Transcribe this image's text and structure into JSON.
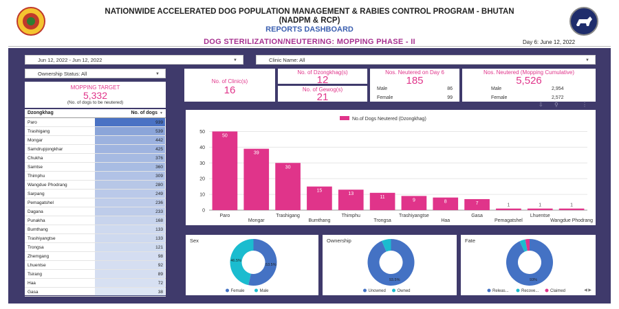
{
  "header": {
    "title_line1": "NATIONWIDE ACCELERATED DOG POPULATION MANAGEMENT & RABIES CONTROL PROGRAM - BHUTAN",
    "title_line2": "(NADPM & RCP)",
    "subtitle": "REPORTS DASHBOARD",
    "phase_title": "DOG STERILIZATION/NEUTERING: MOPPING PHASE - II",
    "day_text": "Day 6: June 12, 2022"
  },
  "filters": {
    "date_range": "Jun 12, 2022 - Jun 12, 2022",
    "clinic": "Clinic Name: All",
    "ownership": "Ownership Status: All"
  },
  "target": {
    "label": "MOPPING TARGET",
    "value": "5,332",
    "note": "(No. of dogs to be neutered)"
  },
  "kpis": {
    "clinics_label": "No. of Clinic(s)",
    "clinics_value": "16",
    "dzongkhags_label": "No. of Dzongkhag(s)",
    "dzongkhags_value": "12",
    "gewogs_label": "No. of Gewog(s)",
    "gewogs_value": "21",
    "day6_label": "Nos. Neutered on Day 6",
    "day6_value": "185",
    "day6_male_label": "Male",
    "day6_male": "86",
    "day6_female_label": "Female",
    "day6_female": "99",
    "cum_label": "Nos. Neutered (Mopping Cumulative)",
    "cum_value": "5,526",
    "cum_male_label": "Male",
    "cum_male": "2,954",
    "cum_female_label": "Female",
    "cum_female": "2,572"
  },
  "table": {
    "col1": "Dzongkhag",
    "col2": "No. of dogs",
    "sort_icon": "sort-desc-icon",
    "bar_color": "#4a72c4",
    "rows": [
      {
        "name": "Paro",
        "value": 939
      },
      {
        "name": "Trashigang",
        "value": 539
      },
      {
        "name": "Mongar",
        "value": 442
      },
      {
        "name": "Samdrupjongkhar",
        "value": 425
      },
      {
        "name": "Chukha",
        "value": 376
      },
      {
        "name": "Samtse",
        "value": 360
      },
      {
        "name": "Thimphu",
        "value": 309
      },
      {
        "name": "Wangdue Phodrang",
        "value": 280
      },
      {
        "name": "Sarpang",
        "value": 249
      },
      {
        "name": "Pemagatshel",
        "value": 236
      },
      {
        "name": "Dagana",
        "value": 233
      },
      {
        "name": "Punakha",
        "value": 168
      },
      {
        "name": "Bumthang",
        "value": 133
      },
      {
        "name": "Trashiyangtse",
        "value": 133
      },
      {
        "name": "Trongsa",
        "value": 121
      },
      {
        "name": "Zhemgang",
        "value": 98
      },
      {
        "name": "Lhuentse",
        "value": 92
      },
      {
        "name": "Tsirang",
        "value": 89
      },
      {
        "name": "Haa",
        "value": 72
      },
      {
        "name": "Gasa",
        "value": 38
      }
    ]
  },
  "chart_data": [
    {
      "type": "bar",
      "legend": "No.of Dogs Neutered (Dzongkhag)",
      "legend_position": "top",
      "categories": [
        "Paro",
        "Mongar",
        "Trashigang",
        "Bumthang",
        "Thimphu",
        "Trongsa",
        "Trashiyangtse",
        "Haa",
        "Gasa",
        "Pemagatshel",
        "Lhuentse",
        "Wangdue Phodrang"
      ],
      "values": [
        50,
        39,
        30,
        15,
        13,
        11,
        9,
        8,
        7,
        1,
        1,
        1
      ],
      "yticks": [
        0,
        10,
        20,
        30,
        40,
        50
      ],
      "ylim": [
        0,
        55
      ],
      "color": "#e0348a",
      "grid": true
    },
    {
      "type": "pie",
      "title": "Sex",
      "labels": [
        "Female",
        "Male"
      ],
      "values": [
        53.5,
        46.5
      ],
      "value_labels": [
        "53.5%",
        "46.5%"
      ],
      "colors": [
        "#4472c4",
        "#1bbccf"
      ]
    },
    {
      "type": "pie",
      "title": "Ownership",
      "labels": [
        "Unowned",
        "Owned"
      ],
      "values": [
        93.5,
        6.5
      ],
      "value_labels": [
        "93.5%",
        ""
      ],
      "colors": [
        "#4472c4",
        "#1bbccf"
      ]
    },
    {
      "type": "pie",
      "title": "Fate",
      "labels": [
        "Releas...",
        "Recove...",
        "Claimed"
      ],
      "values": [
        93,
        4,
        3
      ],
      "value_labels": [
        "93%",
        "",
        ""
      ],
      "colors": [
        "#4472c4",
        "#1bbccf",
        "#e0348a"
      ]
    }
  ],
  "icons": {
    "toolbar": [
      "export-icon",
      "filter-icon",
      "more-icon"
    ],
    "fate_legend_nav": "legend-nav-icon"
  }
}
